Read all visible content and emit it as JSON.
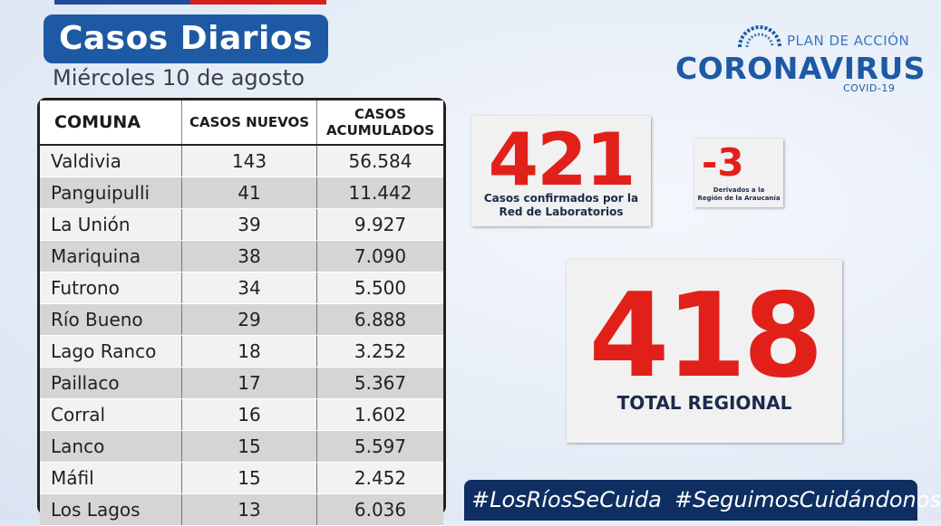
{
  "header": {
    "title": "Casos Diarios",
    "date": "Miércoles 10 de agosto"
  },
  "logo": {
    "plan": "PLAN DE ACCIÓN",
    "name": "CORONAVIRUS",
    "sub": "COVID-19",
    "icon": "virus-icon"
  },
  "table": {
    "headers": [
      "COMUNA",
      "CASOS NUEVOS",
      "CASOS",
      "ACUMULADOS"
    ],
    "rows": [
      {
        "comuna": "Valdivia",
        "nuevos": "143",
        "acumulados": "56.584"
      },
      {
        "comuna": "Panguipulli",
        "nuevos": "41",
        "acumulados": "11.442"
      },
      {
        "comuna": "La Unión",
        "nuevos": "39",
        "acumulados": "9.927"
      },
      {
        "comuna": "Mariquina",
        "nuevos": "38",
        "acumulados": "7.090"
      },
      {
        "comuna": "Futrono",
        "nuevos": "34",
        "acumulados": "5.500"
      },
      {
        "comuna": "Río Bueno",
        "nuevos": "29",
        "acumulados": "6.888"
      },
      {
        "comuna": "Lago Ranco",
        "nuevos": "18",
        "acumulados": "3.252"
      },
      {
        "comuna": "Paillaco",
        "nuevos": "17",
        "acumulados": "5.367"
      },
      {
        "comuna": "Corral",
        "nuevos": "16",
        "acumulados": "1.602"
      },
      {
        "comuna": "Lanco",
        "nuevos": "15",
        "acumulados": "5.597"
      },
      {
        "comuna": "Máfil",
        "nuevos": "15",
        "acumulados": "2.452"
      },
      {
        "comuna": "Los Lagos",
        "nuevos": "13",
        "acumulados": "6.036"
      }
    ]
  },
  "cards": {
    "confirmed": {
      "value": "421",
      "label_line1": "Casos confirmados por la",
      "label_line2": "Red de Laboratorios"
    },
    "derived": {
      "value": "-3",
      "label_line1": "Derivados a la",
      "label_line2": "Región de la Araucanía"
    },
    "total": {
      "value": "418",
      "label": "TOTAL REGIONAL"
    }
  },
  "hashtags": [
    "#LosRíosSeCuida",
    "#SeguimosCuidándonos"
  ],
  "colors": {
    "title_bg": "#1d5aa3",
    "accent_red": "#e1201a",
    "hashbar_bg": "#0f2e62",
    "brand_blue": "#1d5aa3"
  }
}
